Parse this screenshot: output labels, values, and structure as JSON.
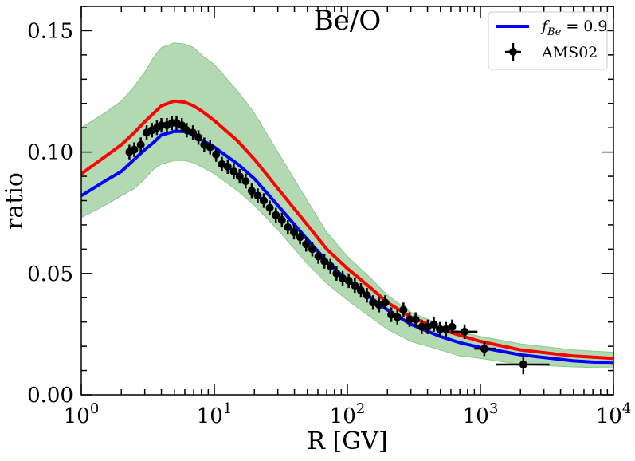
{
  "chart_data": {
    "type": "line",
    "title": "Be/O",
    "xlabel": "R [GV]",
    "ylabel": "ratio",
    "xscale": "log",
    "xlim": [
      1,
      10000
    ],
    "ylim": [
      0,
      0.16
    ],
    "x_tick_values": [
      1,
      10,
      100,
      1000,
      10000
    ],
    "x_tick_labels": [
      {
        "base": "10",
        "exp": "0"
      },
      {
        "base": "10",
        "exp": "1"
      },
      {
        "base": "10",
        "exp": "2"
      },
      {
        "base": "10",
        "exp": "3"
      },
      {
        "base": "10",
        "exp": "4"
      }
    ],
    "y_tick_values": [
      0.0,
      0.05,
      0.1,
      0.15
    ],
    "y_tick_labels": [
      "0.00",
      "0.05",
      "0.10",
      "0.15"
    ],
    "legend": {
      "position": "top-right",
      "entries": [
        {
          "label_prefix": "f",
          "label_sub": "Be",
          "label_suffix": " = 0.9",
          "color": "#0000ff",
          "marker": "line"
        },
        {
          "label": "AMS02",
          "color": "#000000",
          "marker": "errorbar"
        }
      ]
    },
    "band": {
      "name": "uncertainty band",
      "color": "#b3d9b3",
      "edge_color": "#8cc68c",
      "upper": [
        [
          1,
          0.11
        ],
        [
          1.5,
          0.116
        ],
        [
          2,
          0.121
        ],
        [
          2.5,
          0.127
        ],
        [
          3,
          0.133
        ],
        [
          3.5,
          0.139
        ],
        [
          4,
          0.143
        ],
        [
          5,
          0.145
        ],
        [
          6,
          0.1445
        ],
        [
          7,
          0.143
        ],
        [
          8,
          0.14
        ],
        [
          10,
          0.136
        ],
        [
          15,
          0.125
        ],
        [
          20,
          0.116
        ],
        [
          30,
          0.1
        ],
        [
          50,
          0.08
        ],
        [
          70,
          0.067
        ],
        [
          100,
          0.057
        ],
        [
          150,
          0.048
        ],
        [
          200,
          0.041
        ],
        [
          300,
          0.034
        ],
        [
          500,
          0.029
        ],
        [
          700,
          0.026
        ],
        [
          1000,
          0.024
        ],
        [
          2000,
          0.021
        ],
        [
          5000,
          0.0185
        ],
        [
          10000,
          0.0175
        ]
      ],
      "lower": [
        [
          1,
          0.073
        ],
        [
          1.5,
          0.078
        ],
        [
          2,
          0.082
        ],
        [
          2.5,
          0.085
        ],
        [
          3,
          0.089
        ],
        [
          3.5,
          0.093
        ],
        [
          4,
          0.095
        ],
        [
          5,
          0.0965
        ],
        [
          6,
          0.0965
        ],
        [
          7,
          0.0955
        ],
        [
          8,
          0.094
        ],
        [
          10,
          0.091
        ],
        [
          15,
          0.084
        ],
        [
          20,
          0.078
        ],
        [
          30,
          0.068
        ],
        [
          50,
          0.054
        ],
        [
          70,
          0.046
        ],
        [
          100,
          0.039
        ],
        [
          150,
          0.032
        ],
        [
          200,
          0.027
        ],
        [
          300,
          0.022
        ],
        [
          500,
          0.0185
        ],
        [
          700,
          0.016
        ],
        [
          1000,
          0.015
        ],
        [
          2000,
          0.0125
        ],
        [
          5000,
          0.0115
        ],
        [
          10000,
          0.011
        ]
      ]
    },
    "series": [
      {
        "name": "red model",
        "color": "#ff0000",
        "points": [
          [
            1,
            0.091
          ],
          [
            1.5,
            0.098
          ],
          [
            2,
            0.103
          ],
          [
            2.5,
            0.108
          ],
          [
            3,
            0.1125
          ],
          [
            3.5,
            0.116
          ],
          [
            4,
            0.119
          ],
          [
            5,
            0.121
          ],
          [
            6,
            0.1205
          ],
          [
            7,
            0.119
          ],
          [
            8,
            0.117
          ],
          [
            10,
            0.113
          ],
          [
            15,
            0.1045
          ],
          [
            20,
            0.097
          ],
          [
            30,
            0.085
          ],
          [
            50,
            0.07
          ],
          [
            70,
            0.06
          ],
          [
            100,
            0.052
          ],
          [
            150,
            0.044
          ],
          [
            200,
            0.038
          ],
          [
            300,
            0.032
          ],
          [
            500,
            0.027
          ],
          [
            700,
            0.0245
          ],
          [
            1000,
            0.022
          ],
          [
            2000,
            0.0185
          ],
          [
            5000,
            0.016
          ],
          [
            10000,
            0.015
          ]
        ]
      },
      {
        "name": "f_Be = 0.9",
        "color": "#0000ff",
        "points": [
          [
            1,
            0.082
          ],
          [
            1.5,
            0.088
          ],
          [
            2,
            0.092
          ],
          [
            2.5,
            0.097
          ],
          [
            3,
            0.101
          ],
          [
            3.5,
            0.104
          ],
          [
            4,
            0.107
          ],
          [
            5,
            0.1085
          ],
          [
            6,
            0.1085
          ],
          [
            7,
            0.107
          ],
          [
            8,
            0.105
          ],
          [
            10,
            0.102
          ],
          [
            15,
            0.095
          ],
          [
            20,
            0.089
          ],
          [
            30,
            0.078
          ],
          [
            50,
            0.064
          ],
          [
            70,
            0.055
          ],
          [
            100,
            0.047
          ],
          [
            150,
            0.04
          ],
          [
            200,
            0.035
          ],
          [
            300,
            0.029
          ],
          [
            500,
            0.024
          ],
          [
            700,
            0.0215
          ],
          [
            1000,
            0.0195
          ],
          [
            2000,
            0.0165
          ],
          [
            5000,
            0.014
          ],
          [
            10000,
            0.013
          ]
        ]
      }
    ],
    "points": {
      "name": "AMS02",
      "color": "#000000",
      "data": [
        [
          2.3,
          0.1,
          0.003
        ],
        [
          2.5,
          0.101,
          0.003
        ],
        [
          2.8,
          0.103,
          0.003
        ],
        [
          3.1,
          0.108,
          0.003
        ],
        [
          3.4,
          0.109,
          0.003
        ],
        [
          3.7,
          0.11,
          0.003
        ],
        [
          4.0,
          0.111,
          0.003
        ],
        [
          4.4,
          0.111,
          0.003
        ],
        [
          4.8,
          0.112,
          0.003
        ],
        [
          5.2,
          0.112,
          0.003
        ],
        [
          5.7,
          0.111,
          0.003
        ],
        [
          6.2,
          0.109,
          0.003
        ],
        [
          6.9,
          0.108,
          0.003
        ],
        [
          7.6,
          0.106,
          0.003
        ],
        [
          8.4,
          0.103,
          0.003
        ],
        [
          9.3,
          0.102,
          0.003
        ],
        [
          10.3,
          0.099,
          0.003
        ],
        [
          11.4,
          0.095,
          0.003
        ],
        [
          12.6,
          0.094,
          0.003
        ],
        [
          14.0,
          0.092,
          0.003
        ],
        [
          15.5,
          0.09,
          0.003
        ],
        [
          17.2,
          0.088,
          0.003
        ],
        [
          19.1,
          0.084,
          0.003
        ],
        [
          21.2,
          0.082,
          0.003
        ],
        [
          23.5,
          0.08,
          0.003
        ],
        [
          26.1,
          0.077,
          0.003
        ],
        [
          29.0,
          0.074,
          0.003
        ],
        [
          32.2,
          0.072,
          0.003
        ],
        [
          35.7,
          0.069,
          0.003
        ],
        [
          39.7,
          0.067,
          0.003
        ],
        [
          44.1,
          0.065,
          0.003
        ],
        [
          49.0,
          0.062,
          0.003
        ],
        [
          54.5,
          0.06,
          0.003
        ],
        [
          60.5,
          0.057,
          0.003
        ],
        [
          67.2,
          0.055,
          0.003
        ],
        [
          74.6,
          0.053,
          0.003
        ],
        [
          82.9,
          0.05,
          0.003
        ],
        [
          92.1,
          0.048,
          0.003
        ],
        [
          102.3,
          0.047,
          0.003
        ],
        [
          113.7,
          0.045,
          0.003
        ],
        [
          126.3,
          0.043,
          0.003
        ],
        [
          140.3,
          0.041,
          0.003
        ],
        [
          155.9,
          0.038,
          0.003
        ],
        [
          173.2,
          0.037,
          0.003
        ],
        [
          192.4,
          0.038,
          0.003
        ],
        [
          213.8,
          0.033,
          0.003
        ],
        [
          237.5,
          0.032,
          0.003
        ],
        [
          263.9,
          0.035,
          0.003
        ],
        [
          293.2,
          0.031,
          0.003
        ],
        [
          325.7,
          0.031,
          0.003
        ],
        [
          361.9,
          0.028,
          0.003
        ],
        [
          402.0,
          0.028,
          0.003
        ],
        [
          446.7,
          0.029,
          0.003
        ],
        [
          496.2,
          0.027,
          0.003
        ],
        [
          551.3,
          0.027,
          0.003
        ],
        [
          612.5,
          0.028,
          0.003
        ],
        [
          760.0,
          0.026,
          0.003
        ],
        [
          1070.0,
          0.019,
          0.003
        ],
        [
          2100.0,
          0.0125,
          0.004
        ]
      ],
      "x_error_points": [
        [
          760.0,
          0.026,
          600.0,
          950.0
        ],
        [
          1070.0,
          0.019,
          900.0,
          1300.0
        ],
        [
          2100.0,
          0.0125,
          1300.0,
          3300.0
        ]
      ]
    }
  }
}
